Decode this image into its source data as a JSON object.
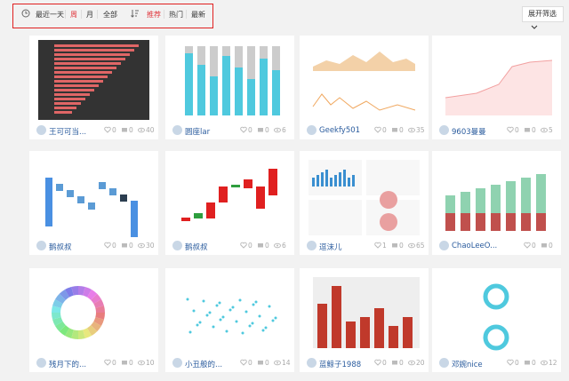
{
  "toolbar": {
    "time_filters": [
      "最近一天",
      "周",
      "月",
      "全部"
    ],
    "sort_filters": [
      "推荐",
      "热门",
      "最新"
    ],
    "expand_button": "展开筛选"
  },
  "cards": [
    {
      "author": "王可可当...",
      "stats": [
        0,
        0,
        40
      ]
    },
    {
      "author": "圆座lar",
      "stats": [
        0,
        0,
        6
      ]
    },
    {
      "author": "Geekfy501",
      "stats": [
        0,
        0,
        35
      ]
    },
    {
      "author": "9603曼曼",
      "stats": [
        0,
        0,
        5
      ]
    },
    {
      "author": "鹅叔叔",
      "stats": [
        0,
        0,
        30
      ]
    },
    {
      "author": "鹅叔叔",
      "stats": [
        0,
        0,
        6
      ]
    },
    {
      "author": "逗沫儿",
      "stats": [
        1,
        0,
        65
      ]
    },
    {
      "author": "ChaoLeeO...",
      "stats": [
        0,
        0
      ]
    },
    {
      "author": "残月下的...",
      "stats": [
        0,
        0,
        10
      ]
    },
    {
      "author": "小丑般的...",
      "stats": [
        0,
        0,
        14
      ]
    },
    {
      "author": "蓝鲸子1988",
      "stats": [
        0,
        0,
        20
      ]
    },
    {
      "author": "邓婉nice",
      "stats": [
        0,
        0,
        12
      ]
    }
  ]
}
